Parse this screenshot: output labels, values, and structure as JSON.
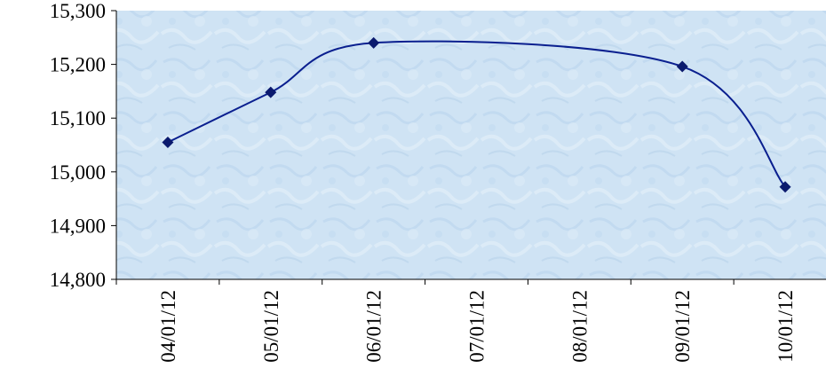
{
  "chart_data": {
    "type": "line",
    "title": "",
    "xlabel": "",
    "ylabel": "",
    "ylim": [
      14800,
      15300
    ],
    "yticks": [
      14800,
      14900,
      15000,
      15100,
      15200,
      15300
    ],
    "ytick_labels": [
      "14,800",
      "14,900",
      "15,000",
      "15,100",
      "15,200",
      "15,300"
    ],
    "xtick_labels": [
      "04/01/12",
      "05/01/12",
      "06/01/12",
      "07/01/12",
      "08/01/12",
      "09/01/12",
      "10/01/12"
    ],
    "series": [
      {
        "marker": "diamond",
        "smooth": true,
        "x": [
          "04/01/12",
          "05/01/12",
          "06/01/12",
          "09/01/12",
          "10/01/12"
        ],
        "values": [
          15055,
          15148,
          15240,
          15196,
          14972
        ]
      }
    ],
    "colors": {
      "line": "#0a1f8f",
      "marker": "#0b1a6e",
      "plot_bg": "#cfe2f3",
      "axis": "#000000"
    },
    "grid": false,
    "legend": "none"
  }
}
